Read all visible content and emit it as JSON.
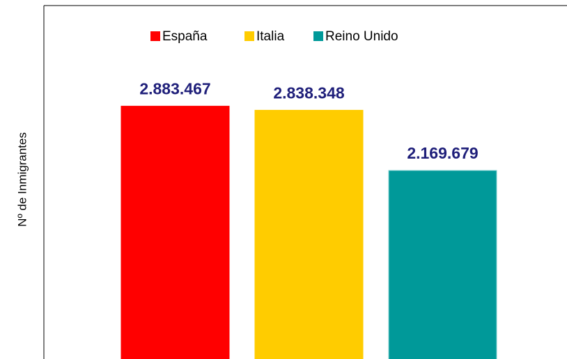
{
  "chart_data": {
    "type": "bar",
    "ylabel": "Nº de Inmigrantes",
    "categories": [
      null
    ],
    "series": [
      {
        "name": "España",
        "color": "#ff0000",
        "values": [
          2883467
        ],
        "value_labels": [
          "2.883.467"
        ]
      },
      {
        "name": "Italia",
        "color": "#ffcc00",
        "values": [
          2838348
        ],
        "value_labels": [
          "2.838.348"
        ]
      },
      {
        "name": "Reino Unido",
        "color": "#009999",
        "values": [
          2169679
        ],
        "value_labels": [
          "2.169.679"
        ]
      }
    ],
    "ylim": [
      0,
      4000000
    ],
    "legend": "top"
  }
}
